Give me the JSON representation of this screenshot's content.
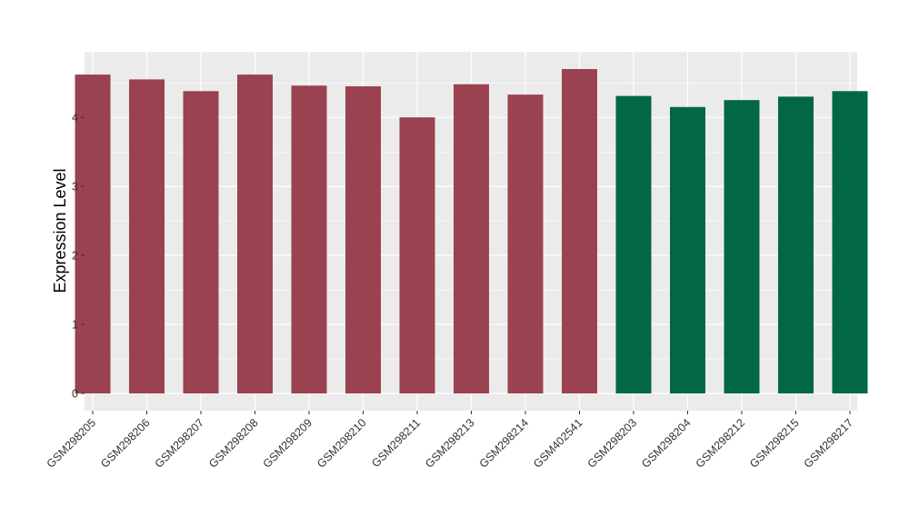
{
  "chart_data": {
    "type": "bar",
    "title": "",
    "xlabel": "",
    "ylabel": "Expression Level",
    "ylim": [
      -0.25,
      4.95
    ],
    "yticks": [
      0,
      1,
      2,
      3,
      4
    ],
    "grid": true,
    "panel_background": "#EBEBEB",
    "grid_color": "#FFFFFF",
    "categories": [
      "GSM298205",
      "GSM298206",
      "GSM298207",
      "GSM298208",
      "GSM298209",
      "GSM298210",
      "GSM298211",
      "GSM298213",
      "GSM298214",
      "GSM402541",
      "GSM298203",
      "GSM298204",
      "GSM298212",
      "GSM298215",
      "GSM298217"
    ],
    "values": [
      4.62,
      4.55,
      4.38,
      4.62,
      4.46,
      4.45,
      4.0,
      4.48,
      4.33,
      4.7,
      4.31,
      4.15,
      4.25,
      4.3,
      4.38
    ],
    "bar_colors": [
      "#9B4250",
      "#9B4250",
      "#9B4250",
      "#9B4250",
      "#9B4250",
      "#9B4250",
      "#9B4250",
      "#9B4250",
      "#9B4250",
      "#9B4250",
      "#016747",
      "#016747",
      "#016747",
      "#016747",
      "#016747"
    ]
  }
}
